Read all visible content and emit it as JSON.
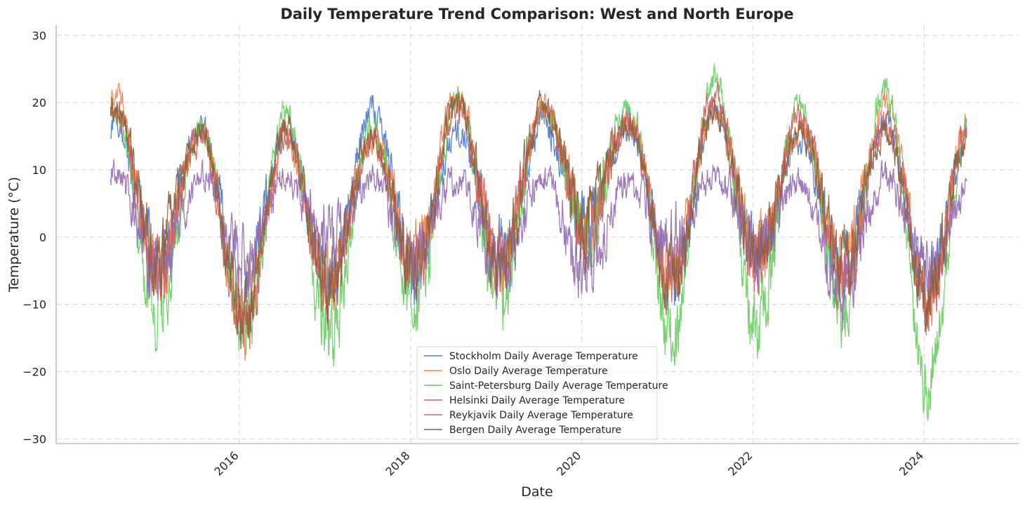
{
  "chart_data": {
    "type": "line",
    "title": "Daily Temperature Trend Comparison: West and North Europe",
    "xlabel": "Date",
    "ylabel": "Temperature (°C)",
    "x_range": [
      "2014-07-01",
      "2024-07-01"
    ],
    "xlim": [
      "2013-11-11",
      "2025-02-07"
    ],
    "ylim": [
      -30.7,
      31.5
    ],
    "x_ticks": [
      {
        "date": "2016-01-01",
        "label": "2016"
      },
      {
        "date": "2018-01-01",
        "label": "2018"
      },
      {
        "date": "2020-01-01",
        "label": "2020"
      },
      {
        "date": "2022-01-01",
        "label": "2022"
      },
      {
        "date": "2024-01-01",
        "label": "2024"
      }
    ],
    "y_ticks": [
      {
        "value": 30,
        "label": "30"
      },
      {
        "value": 20,
        "label": "20"
      },
      {
        "value": 10,
        "label": "10"
      },
      {
        "value": 0,
        "label": "0"
      },
      {
        "value": -10,
        "label": "−10"
      },
      {
        "value": -20,
        "label": "−20"
      },
      {
        "value": -30,
        "label": "−30"
      }
    ],
    "grid": true,
    "legend_position": "bottom-center",
    "series": [
      {
        "name": "Stockholm Daily Average Temperature",
        "color": "#4878d0",
        "summer_peaks": [
          22,
          21.5,
          20.5,
          24,
          20.5,
          22,
          22,
          24,
          20,
          21.5
        ],
        "winter_troughs": [
          -11,
          -15,
          -13,
          -12,
          -10,
          -5,
          -14,
          -10,
          -12,
          -14
        ]
      },
      {
        "name": "Oslo Daily Average Temperature",
        "color": "#ee854a",
        "summer_peaks": [
          26,
          20.5,
          19.5,
          19,
          25.5,
          24.5,
          22,
          24,
          21,
          24.5
        ],
        "winter_troughs": [
          -12,
          -18.5,
          -12,
          -10,
          -12,
          -6,
          -13,
          -9,
          -11,
          -16.5
        ]
      },
      {
        "name": "Saint-Petersburg Daily Average Temperature",
        "color": "#6acc64",
        "summer_peaks": [
          23,
          21,
          23.5,
          21,
          25,
          24,
          24.5,
          28.5,
          25,
          26.5,
          24
        ],
        "winter_troughs": [
          -18,
          -21.5,
          -21.5,
          -17,
          -16,
          -7,
          -21,
          -20.5,
          -18,
          -28.2
        ]
      },
      {
        "name": "Helsinki Daily Average Temperature",
        "color": "#d65f5f",
        "summer_peaks": [
          24,
          20,
          20,
          19.5,
          24.5,
          24,
          22,
          26,
          23,
          22
        ],
        "winter_troughs": [
          -12,
          -20.5,
          -15,
          -12,
          -11.5,
          -6,
          -14,
          -11,
          -13,
          -16
        ]
      },
      {
        "name": "Reykjavik Daily Average Temperature",
        "color": "#956cb4",
        "summer_peaks": [
          14.5,
          14,
          14,
          13.5,
          13.5,
          13.5,
          13,
          14,
          13,
          14,
          12
        ],
        "winter_troughs": [
          -12.5,
          -10,
          -8,
          -10,
          -11,
          -12.5,
          -8,
          -8.5,
          -15.5,
          -12
        ]
      },
      {
        "name": "Bergen Daily Average Temperature",
        "color": "#8c613c",
        "summer_peaks": [
          24.5,
          21,
          21,
          20,
          25,
          24.5,
          22,
          23.5,
          21,
          20.5,
          21.5
        ],
        "winter_troughs": [
          -10,
          -19,
          -14.5,
          -12,
          -11,
          -5.5,
          -13,
          -9,
          -10,
          -15
        ]
      }
    ]
  }
}
